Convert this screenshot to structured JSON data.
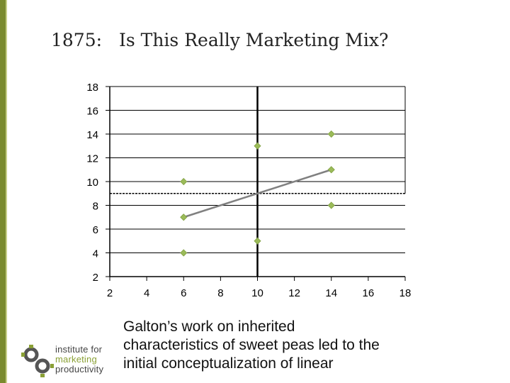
{
  "slide": {
    "title_year": "1875:",
    "title_main": "Is This Really Marketing Mix?",
    "caption_lines": [
      "Galton’s work on inherited",
      "characteristics of sweet peas led to the",
      "initial conceptualization of linear"
    ],
    "logo": {
      "icon": "gear-logo-icon",
      "line1": "institute for",
      "line2": "marketing",
      "line3": "productivity"
    }
  },
  "colors": {
    "accent_bar": "#7a8a2e",
    "marker": "#9bbb59",
    "regression_line": "#808080",
    "axis": "#000000"
  },
  "chart_data": {
    "type": "scatter",
    "title": "",
    "xlabel": "",
    "ylabel": "",
    "xlim": [
      2,
      18
    ],
    "ylim": [
      2,
      18
    ],
    "xticks": [
      2,
      4,
      6,
      8,
      10,
      12,
      14,
      16,
      18
    ],
    "yticks": [
      2,
      4,
      6,
      8,
      10,
      12,
      14,
      16,
      18
    ],
    "grid": "horizontal",
    "points": [
      {
        "x": 6,
        "y": 4
      },
      {
        "x": 6,
        "y": 7
      },
      {
        "x": 6,
        "y": 10
      },
      {
        "x": 10,
        "y": 5
      },
      {
        "x": 10,
        "y": 13
      },
      {
        "x": 14,
        "y": 8
      },
      {
        "x": 14,
        "y": 11
      },
      {
        "x": 14,
        "y": 14
      }
    ],
    "regression_line": {
      "x": [
        6,
        14
      ],
      "y": [
        7,
        11
      ]
    },
    "vertical_reference": {
      "x": 10
    },
    "horizontal_reference": {
      "y": 9
    }
  }
}
